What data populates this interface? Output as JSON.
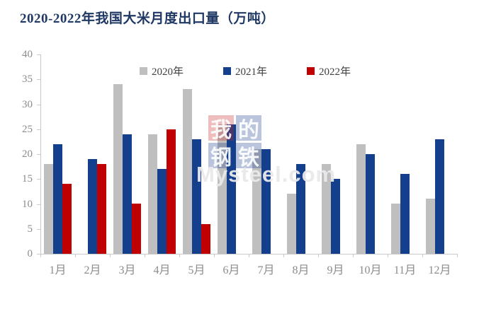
{
  "chart_data": {
    "type": "bar",
    "title": "2020-2022年我国大米月度出口量（万吨）",
    "title_color": "#1f3864",
    "categories": [
      "1月",
      "2月",
      "3月",
      "4月",
      "5月",
      "6月",
      "7月",
      "8月",
      "9月",
      "10月",
      "11月",
      "12月"
    ],
    "series": [
      {
        "name": "2020年",
        "color": "#bfbfbf",
        "values": [
          18,
          0,
          34,
          24,
          33,
          26,
          21,
          12,
          18,
          22,
          10,
          11
        ]
      },
      {
        "name": "2021年",
        "color": "#143f8c",
        "values": [
          22,
          19,
          24,
          17,
          23,
          26,
          21,
          18,
          15,
          20,
          16,
          23
        ]
      },
      {
        "name": "2022年",
        "color": "#c00000",
        "values": [
          14,
          18,
          10,
          25,
          6,
          null,
          null,
          null,
          null,
          null,
          null,
          null
        ]
      }
    ],
    "xlabel": "",
    "ylabel": "",
    "ylim": [
      0,
      40
    ],
    "yticks": [
      0,
      5,
      10,
      15,
      20,
      25,
      30,
      35,
      40
    ],
    "grid": false,
    "legend_position": "top-center"
  },
  "watermark": {
    "squares": [
      {
        "char": "我",
        "color": "red"
      },
      {
        "char": "的",
        "color": "blue"
      },
      {
        "char": "钢",
        "color": "blue"
      },
      {
        "char": "铁",
        "color": "blue"
      }
    ],
    "text": "Mysteel.com"
  },
  "style_colors": {
    "axis_line": "#c9c9c9",
    "axis_text": "#8c8c8c",
    "legend_text": "#404040",
    "background": "#ffffff"
  }
}
